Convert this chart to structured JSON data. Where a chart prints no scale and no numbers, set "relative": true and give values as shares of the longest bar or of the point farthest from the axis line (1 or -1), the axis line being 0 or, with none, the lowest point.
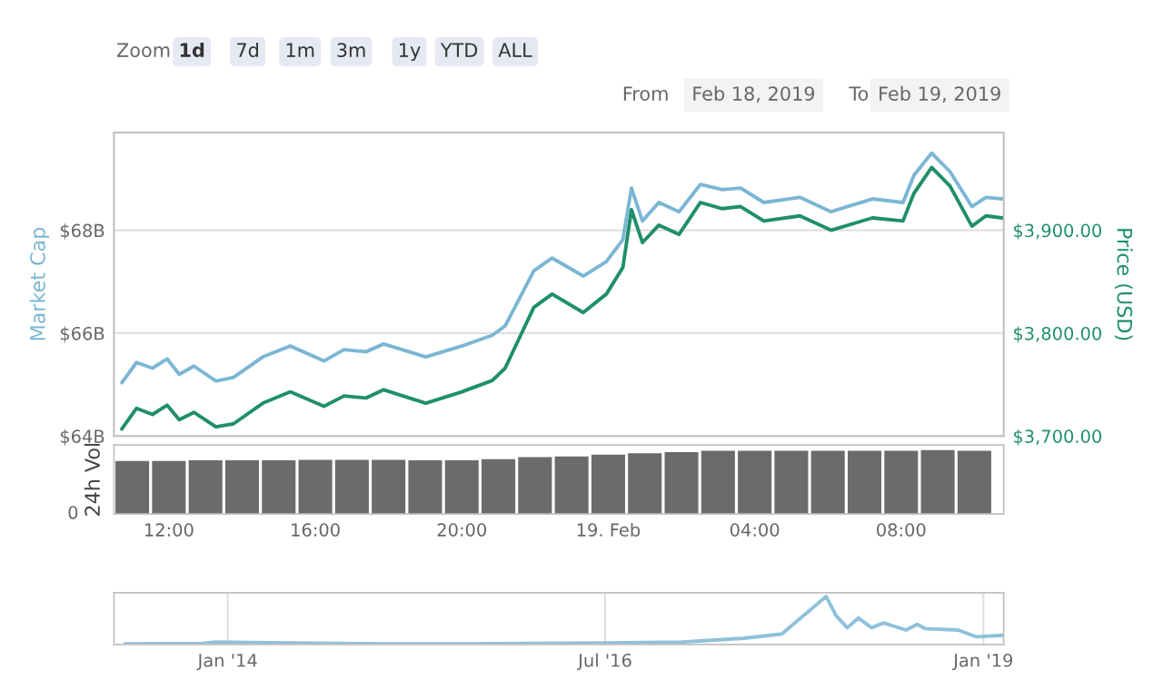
{
  "chart_data": [
    {
      "type": "line",
      "ylabel": "Market Cap",
      "y2label": "Price (USD)",
      "grid": "y",
      "tick_labels": "y",
      "marker": "none",
      "line_style": "solid",
      "annotations": [
        "Zoom",
        "1d",
        "7d",
        "1m",
        "3m",
        "1y",
        "YTD",
        "ALL",
        "From",
        "Feb 18, 2019",
        "To",
        "Feb 19, 2019"
      ],
      "xlim": [
        "2019-02-18T10:30",
        "2019-02-19T10:48"
      ],
      "ylim": [
        64,
        69.9
      ],
      "yticks": [
        {
          "value": 64,
          "label": "$64B"
        },
        {
          "value": 66,
          "label": "$66B"
        },
        {
          "value": 68,
          "label": "$68B"
        }
      ],
      "y2lim": [
        3700,
        3995
      ],
      "y2ticks": [
        {
          "value": 3700,
          "label": "$3,700.00"
        },
        {
          "value": 3800,
          "label": "$3,800.00"
        },
        {
          "value": 3900,
          "label": "$3,900.00"
        }
      ],
      "x": [
        "2019-02-18T10:43",
        "2019-02-18T11:07",
        "2019-02-18T11:33",
        "2019-02-18T11:57",
        "2019-02-18T12:17",
        "2019-02-18T12:41",
        "2019-02-18T13:17",
        "2019-02-18T13:46",
        "2019-02-18T14:34",
        "2019-02-18T15:19",
        "2019-02-18T16:14",
        "2019-02-18T16:47",
        "2019-02-18T17:23",
        "2019-02-18T17:52",
        "2019-02-18T19:01",
        "2019-02-18T20:00",
        "2019-02-18T20:50",
        "2019-02-18T21:11",
        "2019-02-18T21:58",
        "2019-02-18T22:28",
        "2019-02-18T23:19",
        "2019-02-18T23:57",
        "2019-02-19T00:24",
        "2019-02-19T00:38",
        "2019-02-19T00:56",
        "2019-02-19T01:23",
        "2019-02-19T01:56",
        "2019-02-19T02:31",
        "2019-02-19T03:07",
        "2019-02-19T03:37",
        "2019-02-19T04:15",
        "2019-02-19T05:14",
        "2019-02-19T06:05",
        "2019-02-19T07:13",
        "2019-02-19T08:03",
        "2019-02-19T08:21",
        "2019-02-19T08:50",
        "2019-02-19T09:20",
        "2019-02-19T09:56",
        "2019-02-19T10:19",
        "2019-02-19T10:46"
      ],
      "series": [
        {
          "color": "#7bb6d4",
          "values": [
            65.04,
            65.43,
            65.32,
            65.5,
            65.2,
            65.36,
            65.07,
            65.14,
            65.54,
            65.75,
            65.46,
            65.68,
            65.64,
            65.79,
            65.54,
            65.75,
            65.96,
            66.14,
            67.21,
            67.46,
            67.11,
            67.39,
            67.82,
            68.82,
            68.18,
            68.54,
            68.36,
            68.89,
            68.79,
            68.82,
            68.54,
            68.64,
            68.36,
            68.61,
            68.54,
            69.07,
            69.5,
            69.14,
            68.46,
            68.64,
            68.61
          ]
        },
        {
          "color": "#1f8f68",
          "axis": "y2",
          "values": [
            3707,
            3727,
            3721,
            3730,
            3716,
            3723,
            3709,
            3712,
            3732,
            3743,
            3729,
            3739,
            3737,
            3745,
            3732,
            3743,
            3754,
            3766,
            3825,
            3838,
            3820,
            3838,
            3864,
            3920,
            3888,
            3905,
            3896,
            3927,
            3921,
            3923,
            3909,
            3914,
            3900,
            3912,
            3909,
            3936,
            3961,
            3943,
            3904,
            3914,
            3912
          ]
        }
      ]
    },
    {
      "type": "bar",
      "ylabel": "24h Vol",
      "relative": true,
      "tick_labels": "x",
      "annotations": [
        "0"
      ],
      "color": "#6b6b6b",
      "xlim": [
        "2019-02-18T10:30",
        "2019-02-19T10:48"
      ],
      "xticks": [
        {
          "value": "2019-02-18T12:00",
          "label": "12:00"
        },
        {
          "value": "2019-02-18T16:00",
          "label": "16:00"
        },
        {
          "value": "2019-02-18T20:00",
          "label": "20:00"
        },
        {
          "value": "2019-02-19T00:00",
          "label": "19. Feb"
        },
        {
          "value": "2019-02-19T04:00",
          "label": "04:00"
        },
        {
          "value": "2019-02-19T08:00",
          "label": "08:00"
        }
      ],
      "x": [
        "2019-02-18T11:00",
        "2019-02-18T12:00",
        "2019-02-18T13:00",
        "2019-02-18T14:00",
        "2019-02-18T15:00",
        "2019-02-18T16:00",
        "2019-02-18T17:00",
        "2019-02-18T18:00",
        "2019-02-18T19:00",
        "2019-02-18T20:00",
        "2019-02-18T21:00",
        "2019-02-18T22:00",
        "2019-02-18T23:00",
        "2019-02-19T00:00",
        "2019-02-19T01:00",
        "2019-02-19T02:00",
        "2019-02-19T03:00",
        "2019-02-19T04:00",
        "2019-02-19T05:00",
        "2019-02-19T06:00",
        "2019-02-19T07:00",
        "2019-02-19T08:00",
        "2019-02-19T09:00",
        "2019-02-19T10:00"
      ],
      "values": [
        0.83,
        0.83,
        0.84,
        0.84,
        0.84,
        0.85,
        0.85,
        0.85,
        0.84,
        0.84,
        0.86,
        0.89,
        0.9,
        0.93,
        0.95,
        0.97,
        0.99,
        0.99,
        0.99,
        0.99,
        0.99,
        0.99,
        1.0,
        0.99
      ]
    },
    {
      "type": "line",
      "relative": true,
      "tick_labels": "x",
      "grid": "x",
      "color": "#8fc1da",
      "xlim": [
        "2013-04-01",
        "2019-02-19"
      ],
      "xticks": [
        {
          "value": "2014-01-01",
          "label": "Jan '14"
        },
        {
          "value": "2016-07-01",
          "label": "Jul '16"
        },
        {
          "value": "2019-01-01",
          "label": "Jan '19"
        }
      ],
      "x": [
        "2013-04-28",
        "2013-11-01",
        "2013-12-04",
        "2014-06-01",
        "2015-01-15",
        "2015-06-01",
        "2016-01-01",
        "2016-07-01",
        "2017-01-01",
        "2017-06-01",
        "2017-09-01",
        "2017-12-17",
        "2018-01-10",
        "2018-02-06",
        "2018-03-05",
        "2018-04-06",
        "2018-05-05",
        "2018-06-28",
        "2018-07-25",
        "2018-08-14",
        "2018-11-01",
        "2018-12-15",
        "2019-02-19"
      ],
      "values": [
        0.01,
        0.02,
        0.05,
        0.03,
        0.012,
        0.012,
        0.02,
        0.033,
        0.05,
        0.13,
        0.22,
        1.0,
        0.6,
        0.35,
        0.55,
        0.35,
        0.45,
        0.3,
        0.42,
        0.33,
        0.3,
        0.16,
        0.19
      ]
    }
  ]
}
